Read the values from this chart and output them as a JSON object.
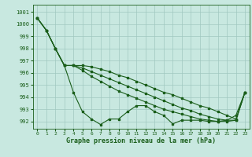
{
  "xlabel": "Graphe pression niveau de la mer (hPa)",
  "ylim": [
    991.4,
    1001.6
  ],
  "xlim": [
    -0.5,
    23.5
  ],
  "yticks": [
    992,
    993,
    994,
    995,
    996,
    997,
    998,
    999,
    1000,
    1001
  ],
  "xticks": [
    0,
    1,
    2,
    3,
    4,
    5,
    6,
    7,
    8,
    9,
    10,
    11,
    12,
    13,
    14,
    15,
    16,
    17,
    18,
    19,
    20,
    21,
    22,
    23
  ],
  "bg_color": "#c8e8e0",
  "line_color": "#1a5e1a",
  "grid_color": "#a0c8c0",
  "series": [
    [
      1000.5,
      999.5,
      998.0,
      996.6,
      994.4,
      992.8,
      992.2,
      991.75,
      992.2,
      992.2,
      992.8,
      993.3,
      993.3,
      992.8,
      992.5,
      991.8,
      992.1,
      992.1,
      992.1,
      992.0,
      992.0,
      992.1,
      992.5,
      994.4
    ],
    [
      1000.5,
      999.5,
      998.0,
      996.6,
      996.6,
      996.2,
      995.7,
      995.3,
      994.9,
      994.5,
      994.2,
      993.9,
      993.6,
      993.3,
      993.0,
      992.8,
      992.6,
      992.4,
      992.2,
      992.1,
      992.0,
      992.0,
      992.1,
      994.4
    ],
    [
      1000.5,
      999.5,
      998.0,
      996.6,
      996.6,
      996.4,
      996.1,
      995.8,
      995.5,
      995.2,
      994.9,
      994.6,
      994.3,
      994.0,
      993.7,
      993.4,
      993.1,
      992.9,
      992.6,
      992.4,
      992.2,
      992.1,
      992.1,
      994.4
    ],
    [
      1000.5,
      999.5,
      998.0,
      996.6,
      996.6,
      996.6,
      996.5,
      996.3,
      996.1,
      995.8,
      995.6,
      995.3,
      995.0,
      994.7,
      994.4,
      994.2,
      993.9,
      993.6,
      993.3,
      993.1,
      992.8,
      992.5,
      992.2,
      994.4
    ]
  ]
}
